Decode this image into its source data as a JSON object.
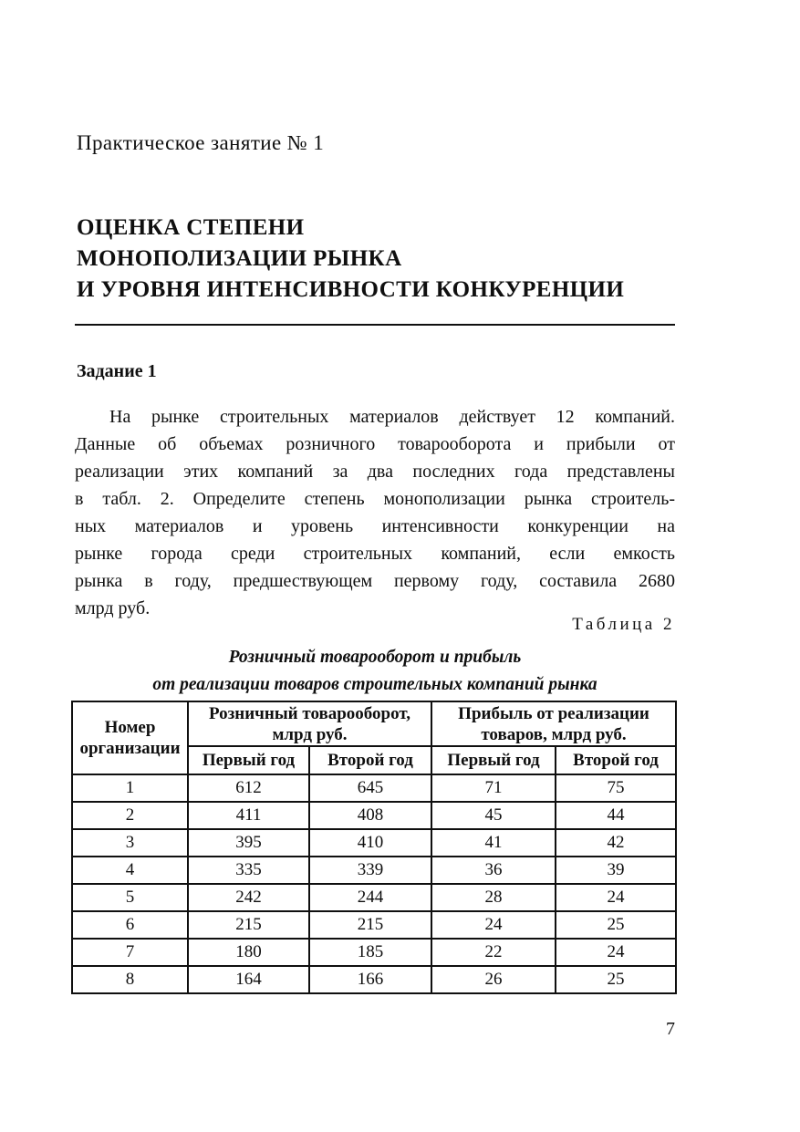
{
  "page": {
    "header_title": "Практическое занятие № 1",
    "main_heading_lines": [
      "ОЦЕНКА СТЕПЕНИ",
      "МОНОПОЛИЗАЦИИ РЫНКА",
      "И УРОВНЯ ИНТЕНСИВНОСТИ КОНКУРЕНЦИИ"
    ],
    "section_heading": "Задание 1",
    "body_lines": [
      "На рынке строительных материалов действует 12 компаний.",
      "Данные об объемах розничного товарооборота и прибыли от",
      "реализации этих компаний за два последних года представлены",
      "в табл. 2. Определите степень монополизации рынка строитель-",
      "ных материалов и уровень интенсивности конкуренции на",
      "рынке города среди строительных компаний, если емкость",
      "рынка в году, предшествующем первому году, составила 2680",
      "млрд руб."
    ],
    "page_number": "7"
  },
  "table": {
    "label": "Таблица 2",
    "caption_lines": [
      "Розничный товарооборот и прибыль",
      "от реализации товаров строительных компаний рынка"
    ],
    "col_group_org": "Номер организации",
    "col_group_turnover": "Розничный товарооборот, млрд руб.",
    "col_group_profit": "Прибыль от реализации товаров, млрд руб.",
    "year_headers": [
      "Первый год",
      "Второй год",
      "Первый год",
      "Второй год"
    ],
    "rows": [
      [
        "1",
        "612",
        "645",
        "71",
        "75"
      ],
      [
        "2",
        "411",
        "408",
        "45",
        "44"
      ],
      [
        "3",
        "395",
        "410",
        "41",
        "42"
      ],
      [
        "4",
        "335",
        "339",
        "36",
        "39"
      ],
      [
        "5",
        "242",
        "244",
        "28",
        "24"
      ],
      [
        "6",
        "215",
        "215",
        "24",
        "25"
      ],
      [
        "7",
        "180",
        "185",
        "22",
        "24"
      ],
      [
        "8",
        "164",
        "166",
        "26",
        "25"
      ]
    ]
  }
}
